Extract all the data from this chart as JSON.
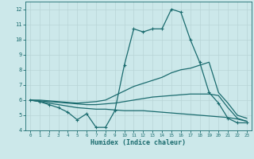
{
  "xlabel": "Humidex (Indice chaleur)",
  "xlim": [
    -0.5,
    23.5
  ],
  "ylim": [
    4,
    12.5
  ],
  "yticks": [
    4,
    5,
    6,
    7,
    8,
    9,
    10,
    11,
    12
  ],
  "xticks": [
    0,
    1,
    2,
    3,
    4,
    5,
    6,
    7,
    8,
    9,
    10,
    11,
    12,
    13,
    14,
    15,
    16,
    17,
    18,
    19,
    20,
    21,
    22,
    23
  ],
  "background_color": "#cce8ea",
  "grid_color": "#b8d4d6",
  "line_color": "#1a6b6e",
  "series": [
    {
      "x": [
        0,
        1,
        2,
        3,
        4,
        5,
        6,
        7,
        8,
        9,
        10,
        11,
        12,
        13,
        14,
        15,
        16,
        17,
        18,
        19,
        20,
        21,
        22,
        23
      ],
      "y": [
        6.0,
        5.9,
        5.7,
        5.5,
        5.2,
        4.7,
        5.1,
        4.2,
        4.2,
        5.3,
        8.3,
        10.7,
        10.5,
        10.7,
        10.7,
        12.0,
        11.8,
        10.0,
        8.5,
        6.5,
        5.8,
        4.8,
        4.5,
        4.5
      ],
      "marker": "+",
      "linewidth": 0.9
    },
    {
      "x": [
        0,
        1,
        2,
        3,
        4,
        5,
        6,
        7,
        8,
        9,
        10,
        11,
        12,
        13,
        14,
        15,
        16,
        17,
        18,
        19,
        20,
        21,
        22,
        23
      ],
      "y": [
        6.0,
        6.0,
        5.95,
        5.9,
        5.85,
        5.8,
        5.85,
        5.9,
        6.0,
        6.3,
        6.6,
        6.9,
        7.1,
        7.3,
        7.5,
        7.8,
        8.0,
        8.1,
        8.3,
        8.5,
        6.5,
        5.8,
        5.0,
        4.8
      ],
      "marker": null,
      "linewidth": 0.9
    },
    {
      "x": [
        0,
        1,
        2,
        3,
        4,
        5,
        6,
        7,
        8,
        9,
        10,
        11,
        12,
        13,
        14,
        15,
        16,
        17,
        18,
        19,
        20,
        21,
        22,
        23
      ],
      "y": [
        6.0,
        5.95,
        5.9,
        5.85,
        5.8,
        5.75,
        5.7,
        5.7,
        5.75,
        5.8,
        5.9,
        6.0,
        6.1,
        6.2,
        6.25,
        6.3,
        6.35,
        6.4,
        6.4,
        6.4,
        6.3,
        5.5,
        4.8,
        4.6
      ],
      "marker": null,
      "linewidth": 0.9
    },
    {
      "x": [
        0,
        1,
        2,
        3,
        4,
        5,
        6,
        7,
        8,
        9,
        10,
        11,
        12,
        13,
        14,
        15,
        16,
        17,
        18,
        19,
        20,
        21,
        22,
        23
      ],
      "y": [
        6.0,
        5.9,
        5.8,
        5.7,
        5.6,
        5.5,
        5.45,
        5.4,
        5.4,
        5.35,
        5.3,
        5.3,
        5.3,
        5.25,
        5.2,
        5.15,
        5.1,
        5.05,
        5.0,
        4.95,
        4.9,
        4.85,
        4.75,
        4.6
      ],
      "marker": null,
      "linewidth": 0.9
    }
  ]
}
